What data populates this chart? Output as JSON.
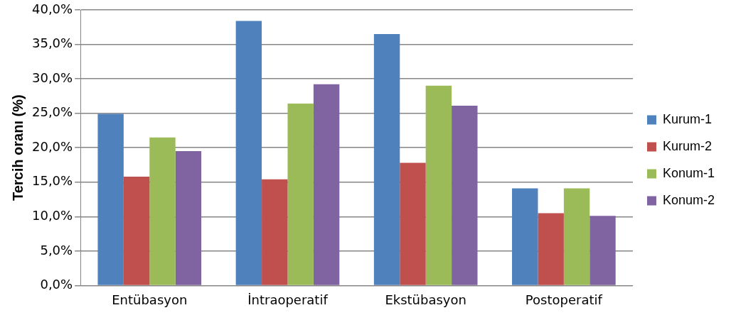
{
  "chart_data": {
    "type": "bar",
    "ylabel": "Tercih oranı (%)",
    "categories": [
      "Entübasyon",
      "İntraoperatif",
      "Ekstübasyon",
      "Postoperatif"
    ],
    "series": [
      {
        "name": "Kurum-1",
        "color": "#4f81bd",
        "values": [
          24.9,
          38.4,
          36.5,
          14.1
        ]
      },
      {
        "name": "Kurum-2",
        "color": "#c0504d",
        "values": [
          15.8,
          15.4,
          17.8,
          10.5
        ]
      },
      {
        "name": "Konum-1",
        "color": "#9bbb59",
        "values": [
          21.5,
          26.4,
          29.0,
          14.1
        ]
      },
      {
        "name": "Konum-2",
        "color": "#8064a2",
        "values": [
          19.5,
          29.2,
          26.1,
          10.1
        ]
      }
    ],
    "ylim": [
      0,
      40
    ],
    "yticks": [
      {
        "value": 0,
        "label": "0,0%"
      },
      {
        "value": 5,
        "label": "5,0%"
      },
      {
        "value": 10,
        "label": "10,0%"
      },
      {
        "value": 15,
        "label": "15,0%"
      },
      {
        "value": 20,
        "label": "20,0%"
      },
      {
        "value": 25,
        "label": "25,0%"
      },
      {
        "value": 30,
        "label": "30,0%"
      },
      {
        "value": 35,
        "label": "35,0%"
      },
      {
        "value": 40,
        "label": "40,0%"
      }
    ],
    "grid": "y",
    "legend": "right"
  }
}
